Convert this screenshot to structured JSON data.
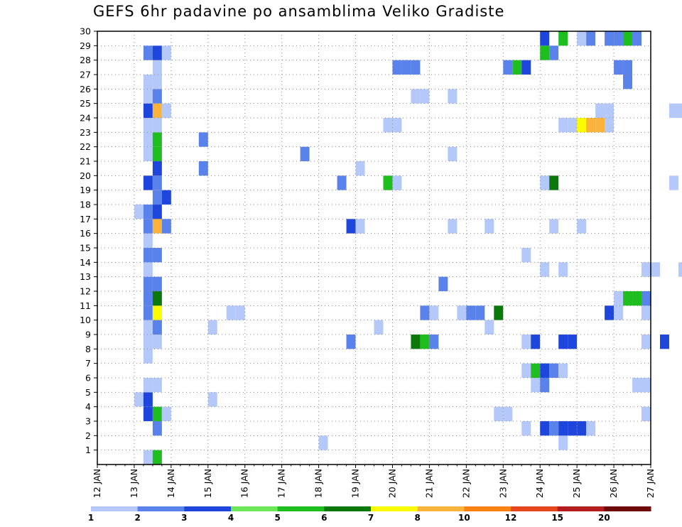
{
  "chart_data": {
    "type": "heatmap",
    "title": "GEFS 6hr padavine po ansamblima Veliko Gradiste",
    "xlabel": "",
    "ylabel": "",
    "x_ticks": [
      "12 JAN",
      "13 JAN",
      "14 JAN",
      "15 JAN",
      "16 JAN",
      "17 JAN",
      "18 JAN",
      "19 JAN",
      "20 JAN",
      "21 JAN",
      "22 JAN",
      "23 JAN",
      "24 JAN",
      "25 JAN",
      "26 JAN",
      "27 JAN"
    ],
    "y_ticks": [
      "1",
      "2",
      "3",
      "4",
      "5",
      "6",
      "7",
      "8",
      "9",
      "10",
      "11",
      "12",
      "13",
      "14",
      "15",
      "16",
      "17",
      "18",
      "19",
      "20",
      "21",
      "22",
      "23",
      "24",
      "25",
      "26",
      "27",
      "28",
      "29",
      "30"
    ],
    "x_range_days": [
      0,
      15
    ],
    "y_range_members": [
      0,
      30
    ],
    "step_days": 0.25,
    "colorbar": {
      "labels": [
        "1",
        "2",
        "3",
        "4",
        "5",
        "6",
        "7",
        "8",
        "10",
        "12",
        "15",
        "20"
      ],
      "colors": [
        "#b4c8fa",
        "#5a82eb",
        "#1e46dc",
        "#6ee65a",
        "#1ebe1e",
        "#0a780a",
        "#fafa00",
        "#fab43c",
        "#fa8214",
        "#e6461e",
        "#b41e1e",
        "#6e0a0a"
      ]
    },
    "cells": [
      [
        1.25,
        0,
        1
      ],
      [
        1.5,
        0,
        5
      ],
      [
        6.0,
        1,
        1
      ],
      [
        12.5,
        1,
        1
      ],
      [
        1.5,
        2,
        2
      ],
      [
        11.5,
        2,
        1
      ],
      [
        12.0,
        2,
        3
      ],
      [
        12.25,
        2,
        2
      ],
      [
        12.5,
        2,
        3
      ],
      [
        12.75,
        2,
        3
      ],
      [
        13.0,
        2,
        3
      ],
      [
        13.25,
        2,
        1
      ],
      [
        1.25,
        3,
        3
      ],
      [
        1.5,
        3,
        5
      ],
      [
        1.75,
        3,
        1
      ],
      [
        10.75,
        3,
        1
      ],
      [
        11.0,
        3,
        1
      ],
      [
        14.75,
        3,
        1
      ],
      [
        1.0,
        4,
        1
      ],
      [
        1.25,
        4,
        3
      ],
      [
        3.0,
        4,
        1
      ],
      [
        1.25,
        5,
        1
      ],
      [
        1.5,
        5,
        1
      ],
      [
        11.75,
        5,
        1
      ],
      [
        12.0,
        5,
        2
      ],
      [
        14.5,
        5,
        1
      ],
      [
        14.75,
        5,
        1
      ],
      [
        11.5,
        6,
        1
      ],
      [
        11.75,
        6,
        5
      ],
      [
        12.0,
        6,
        3
      ],
      [
        12.25,
        6,
        2
      ],
      [
        12.5,
        6,
        1
      ],
      [
        1.25,
        7,
        1
      ],
      [
        1.25,
        8,
        1
      ],
      [
        1.5,
        8,
        1
      ],
      [
        6.75,
        8,
        2
      ],
      [
        8.5,
        8,
        6
      ],
      [
        8.75,
        8,
        5
      ],
      [
        9.0,
        8,
        2
      ],
      [
        11.5,
        8,
        1
      ],
      [
        11.75,
        8,
        3
      ],
      [
        12.5,
        8,
        3
      ],
      [
        12.75,
        8,
        3
      ],
      [
        14.75,
        8,
        1
      ],
      [
        15.25,
        8,
        3
      ],
      [
        1.25,
        9,
        1
      ],
      [
        1.5,
        9,
        2
      ],
      [
        3.0,
        9,
        1
      ],
      [
        7.5,
        9,
        1
      ],
      [
        10.5,
        9,
        1
      ],
      [
        1.25,
        10,
        2
      ],
      [
        1.5,
        10,
        7
      ],
      [
        3.5,
        10,
        1
      ],
      [
        3.75,
        10,
        1
      ],
      [
        8.75,
        10,
        2
      ],
      [
        9.0,
        10,
        1
      ],
      [
        9.75,
        10,
        1
      ],
      [
        10.0,
        10,
        2
      ],
      [
        10.25,
        10,
        2
      ],
      [
        10.75,
        10,
        6
      ],
      [
        13.75,
        10,
        3
      ],
      [
        14.0,
        10,
        1
      ],
      [
        14.75,
        10,
        1
      ],
      [
        1.25,
        11,
        2
      ],
      [
        1.5,
        11,
        6
      ],
      [
        14.0,
        11,
        1
      ],
      [
        14.25,
        11,
        5
      ],
      [
        14.5,
        11,
        5
      ],
      [
        14.75,
        11,
        2
      ],
      [
        1.25,
        12,
        2
      ],
      [
        1.5,
        12,
        2
      ],
      [
        9.25,
        12,
        2
      ],
      [
        1.25,
        13,
        1
      ],
      [
        12.0,
        13,
        1
      ],
      [
        12.5,
        13,
        1
      ],
      [
        14.75,
        13,
        1
      ],
      [
        15.0,
        13,
        1
      ],
      [
        15.75,
        13,
        1
      ],
      [
        1.25,
        14,
        2
      ],
      [
        1.5,
        14,
        2
      ],
      [
        11.5,
        14,
        1
      ],
      [
        1.25,
        15,
        1
      ],
      [
        1.25,
        16,
        2
      ],
      [
        1.5,
        16,
        8
      ],
      [
        1.75,
        16,
        2
      ],
      [
        6.75,
        16,
        3
      ],
      [
        7.0,
        16,
        1
      ],
      [
        9.5,
        16,
        1
      ],
      [
        10.5,
        16,
        1
      ],
      [
        12.25,
        16,
        1
      ],
      [
        13.0,
        16,
        1
      ],
      [
        1.0,
        17,
        1
      ],
      [
        1.25,
        17,
        2
      ],
      [
        1.5,
        17,
        3
      ],
      [
        1.5,
        18,
        2
      ],
      [
        1.75,
        18,
        3
      ],
      [
        1.25,
        19,
        3
      ],
      [
        1.5,
        19,
        2
      ],
      [
        6.5,
        19,
        2
      ],
      [
        7.75,
        19,
        5
      ],
      [
        8.0,
        19,
        1
      ],
      [
        12.0,
        19,
        1
      ],
      [
        12.25,
        19,
        6
      ],
      [
        15.5,
        19,
        1
      ],
      [
        1.5,
        20,
        3
      ],
      [
        2.75,
        20,
        2
      ],
      [
        7.0,
        20,
        1
      ],
      [
        1.25,
        21,
        1
      ],
      [
        1.5,
        21,
        5
      ],
      [
        5.5,
        21,
        2
      ],
      [
        9.5,
        21,
        1
      ],
      [
        1.25,
        22,
        1
      ],
      [
        1.5,
        22,
        5
      ],
      [
        2.75,
        22,
        2
      ],
      [
        1.25,
        23,
        1
      ],
      [
        1.5,
        23,
        1
      ],
      [
        7.75,
        23,
        1
      ],
      [
        8.0,
        23,
        1
      ],
      [
        12.5,
        23,
        1
      ],
      [
        12.75,
        23,
        1
      ],
      [
        13.0,
        23,
        7
      ],
      [
        13.25,
        23,
        8
      ],
      [
        13.5,
        23,
        8
      ],
      [
        13.75,
        23,
        1
      ],
      [
        1.25,
        24,
        3
      ],
      [
        1.5,
        24,
        8
      ],
      [
        1.75,
        24,
        1
      ],
      [
        13.5,
        24,
        1
      ],
      [
        13.75,
        24,
        1
      ],
      [
        15.5,
        24,
        1
      ],
      [
        15.75,
        24,
        1
      ],
      [
        1.25,
        25,
        1
      ],
      [
        1.5,
        25,
        2
      ],
      [
        8.5,
        25,
        1
      ],
      [
        8.75,
        25,
        1
      ],
      [
        9.5,
        25,
        1
      ],
      [
        1.25,
        26,
        1
      ],
      [
        1.5,
        26,
        1
      ],
      [
        14.25,
        26,
        2
      ],
      [
        1.5,
        27,
        1
      ],
      [
        8.0,
        27,
        2
      ],
      [
        8.25,
        27,
        2
      ],
      [
        8.5,
        27,
        2
      ],
      [
        11.0,
        27,
        2
      ],
      [
        11.25,
        27,
        5
      ],
      [
        11.5,
        27,
        3
      ],
      [
        14.0,
        27,
        2
      ],
      [
        14.25,
        27,
        2
      ],
      [
        1.25,
        28,
        2
      ],
      [
        1.5,
        28,
        3
      ],
      [
        1.75,
        28,
        1
      ],
      [
        12.0,
        28,
        5
      ],
      [
        12.25,
        28,
        2
      ],
      [
        12.0,
        29,
        3
      ],
      [
        12.5,
        29,
        5
      ],
      [
        13.0,
        29,
        1
      ],
      [
        13.25,
        29,
        2
      ],
      [
        13.75,
        29,
        2
      ],
      [
        14.0,
        29,
        2
      ],
      [
        14.25,
        29,
        5
      ],
      [
        14.5,
        29,
        2
      ]
    ]
  }
}
